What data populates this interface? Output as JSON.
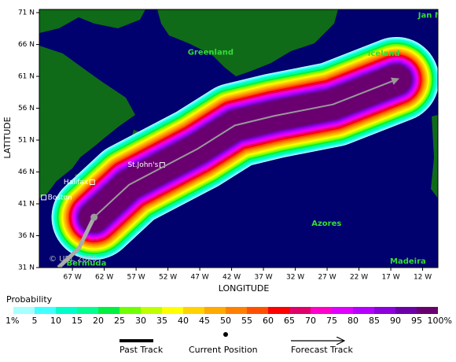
{
  "map": {
    "xlim": [
      -72.2,
      -9.6
    ],
    "ylim": [
      31,
      71.5
    ],
    "xticks": [
      {
        "value": -67,
        "label": "67 W"
      },
      {
        "value": -62,
        "label": "62 W"
      },
      {
        "value": -57,
        "label": "57 W"
      },
      {
        "value": -52,
        "label": "52 W"
      },
      {
        "value": -47,
        "label": "47 W"
      },
      {
        "value": -42,
        "label": "42 W"
      },
      {
        "value": -37,
        "label": "37 W"
      },
      {
        "value": -32,
        "label": "32 W"
      },
      {
        "value": -27,
        "label": "27 W"
      },
      {
        "value": -22,
        "label": "22 W"
      },
      {
        "value": -17,
        "label": "17 W"
      },
      {
        "value": -12,
        "label": "12 W"
      }
    ],
    "yticks": [
      {
        "value": 71,
        "label": "71 N"
      },
      {
        "value": 66,
        "label": "66 N"
      },
      {
        "value": 61,
        "label": "61 N"
      },
      {
        "value": 56,
        "label": "56 N"
      },
      {
        "value": 51,
        "label": "51 N"
      },
      {
        "value": 46,
        "label": "46 N"
      },
      {
        "value": 41,
        "label": "41 N"
      },
      {
        "value": 36,
        "label": "36 N"
      },
      {
        "value": 31,
        "label": "31 N"
      }
    ],
    "xlabel": "LONGITUDE",
    "ylabel": "LATITUDE",
    "regions": [
      {
        "name": "Greenland",
        "lon": -45.3,
        "lat": 64.8
      },
      {
        "name": "Iceland",
        "lon": -18.1,
        "lat": 64.6
      },
      {
        "name": "Jan M",
        "lon": -10.8,
        "lat": 70.6
      },
      {
        "name": "Azores",
        "lon": -27.1,
        "lat": 37.9
      },
      {
        "name": "Bermuda",
        "lon": -64.8,
        "lat": 31.7
      },
      {
        "name": "Madeira",
        "lon": -14.3,
        "lat": 32.0
      }
    ],
    "cities": [
      {
        "name": "St.John's",
        "lon": -52.9,
        "lat": 47.1,
        "side": "left"
      },
      {
        "name": "Halifax",
        "lon": -63.9,
        "lat": 44.4,
        "side": "left"
      },
      {
        "name": "Boston",
        "lon": -71.5,
        "lat": 42.0,
        "side": "right"
      }
    ],
    "copyright": "© UBL 2025",
    "past_track": {
      "lon": [
        -69.2,
        -66.0,
        -63.6
      ],
      "lat": [
        31.0,
        34.0,
        38.9
      ]
    },
    "current_position": {
      "lon": -63.6,
      "lat": 38.9
    },
    "forecast_track": {
      "lon": [
        -63.6,
        -58.1,
        -47.4,
        -41.5,
        -35.3,
        -26.1,
        -16.1
      ],
      "lat": [
        38.9,
        44.0,
        49.6,
        53.3,
        54.8,
        56.6,
        60.5
      ]
    },
    "legend": {
      "title": "Probability",
      "ticks": [
        {
          "value": 1,
          "label": "1%"
        },
        5,
        10,
        15,
        20,
        25,
        30,
        35,
        40,
        45,
        50,
        55,
        60,
        65,
        70,
        75,
        80,
        85,
        90,
        95,
        {
          "value": 100,
          "label": "100%"
        }
      ],
      "colors": [
        "#a8ffff",
        "#40ffff",
        "#00ffc8",
        "#00ff90",
        "#00f040",
        "#70ff00",
        "#c0ff00",
        "#ffff00",
        "#ffd200",
        "#ffaa00",
        "#ff8000",
        "#ff5000",
        "#ff0000",
        "#e0006a",
        "#ff00c8",
        "#e000ff",
        "#b400ff",
        "#8c00dc",
        "#6c00a8",
        "#6a0070"
      ],
      "items": [
        "Past Track",
        "Current Position",
        "Forecast Track"
      ]
    }
  }
}
